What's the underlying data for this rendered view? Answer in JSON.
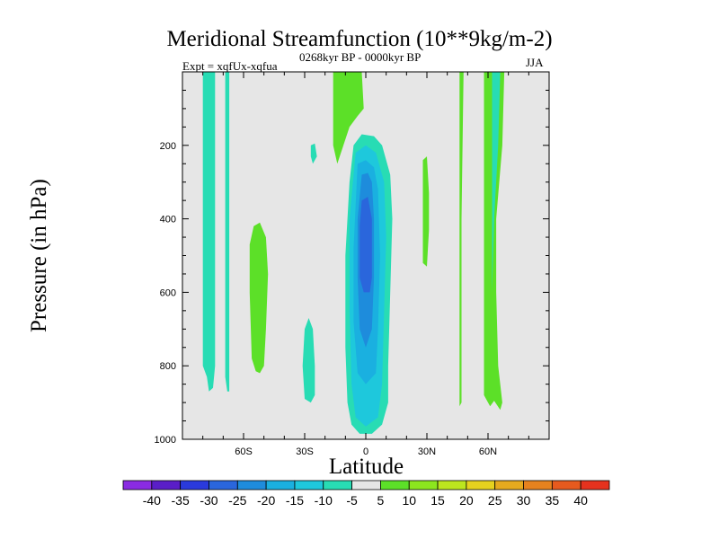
{
  "chart_data": {
    "type": "heatmap",
    "title": "Meridional Streamfunction (10**9kg/m-2)",
    "subtitle_left": "Expt = xqfUx-xqfua",
    "subtitle_center": "0268kyr BP - 0000kyr BP",
    "subtitle_right": "JJA",
    "xlabel": "Latitude",
    "ylabel": "Pressure (in hPa)",
    "xlim": [
      -90,
      90
    ],
    "ylim": [
      1000,
      0
    ],
    "x_ticks": [
      {
        "value": -60,
        "label": "60S"
      },
      {
        "value": -30,
        "label": "30S"
      },
      {
        "value": 0,
        "label": "0"
      },
      {
        "value": 30,
        "label": "30N"
      },
      {
        "value": 60,
        "label": "60N"
      }
    ],
    "y_ticks": [
      {
        "value": 200,
        "label": "200"
      },
      {
        "value": 400,
        "label": "400"
      },
      {
        "value": 600,
        "label": "600"
      },
      {
        "value": 800,
        "label": "800"
      },
      {
        "value": 1000,
        "label": "1000"
      }
    ],
    "background_color": "#e6e6e6",
    "contour_levels": [
      -40,
      -35,
      -30,
      -25,
      -20,
      -15,
      -10,
      -5,
      5,
      10,
      15,
      20,
      25,
      30,
      35,
      40
    ],
    "colorbar_colors": [
      "#8a2be2",
      "#5a1ec8",
      "#2a3adc",
      "#2a66dc",
      "#1e8cdc",
      "#1ab0e0",
      "#1ec8dc",
      "#28dcb4",
      "#e6e6e6",
      "#5ce028",
      "#8ce61e",
      "#bce61e",
      "#e6d21e",
      "#e6aa1e",
      "#e6821e",
      "#e65a1e",
      "#e6321e"
    ],
    "regions": [
      {
        "name": "sh-polar-strip-a",
        "color": "#28dcb4",
        "points": [
          [
            -80,
            0
          ],
          [
            -74,
            0
          ],
          [
            -74,
            800
          ],
          [
            -75,
            860
          ],
          [
            -77,
            870
          ],
          [
            -78,
            830
          ],
          [
            -80,
            800
          ]
        ]
      },
      {
        "name": "sh-polar-strip-b",
        "color": "#28dcb4",
        "points": [
          [
            -69,
            0
          ],
          [
            -67,
            0
          ],
          [
            -67,
            870
          ],
          [
            -68,
            870
          ],
          [
            -69,
            830
          ]
        ]
      },
      {
        "name": "sh-mid-green",
        "color": "#5ce028",
        "points": [
          [
            -55,
            420
          ],
          [
            -52,
            410
          ],
          [
            -49,
            450
          ],
          [
            -48,
            550
          ],
          [
            -49,
            700
          ],
          [
            -50,
            800
          ],
          [
            -52,
            820
          ],
          [
            -54,
            815
          ],
          [
            -56,
            780
          ],
          [
            -57,
            600
          ],
          [
            -57,
            470
          ]
        ]
      },
      {
        "name": "sh-small-teal",
        "color": "#28dcb4",
        "points": [
          [
            -27,
            200
          ],
          [
            -25,
            195
          ],
          [
            -24,
            230
          ],
          [
            -26,
            250
          ],
          [
            -27,
            230
          ]
        ]
      },
      {
        "name": "sh-lower-teal",
        "color": "#28dcb4",
        "points": [
          [
            -30,
            700
          ],
          [
            -28,
            670
          ],
          [
            -26,
            700
          ],
          [
            -25,
            800
          ],
          [
            -25,
            880
          ],
          [
            -27,
            900
          ],
          [
            -30,
            890
          ],
          [
            -31,
            800
          ]
        ]
      },
      {
        "name": "trop-top-green",
        "color": "#5ce028",
        "points": [
          [
            -16,
            0
          ],
          [
            -2,
            0
          ],
          [
            -1,
            100
          ],
          [
            -4,
            120
          ],
          [
            -8,
            150
          ],
          [
            -11,
            200
          ],
          [
            -14,
            250
          ],
          [
            -16,
            200
          ]
        ]
      },
      {
        "name": "nh-strip-green-a",
        "color": "#5ce028",
        "points": [
          [
            28,
            240
          ],
          [
            30,
            230
          ],
          [
            31,
            330
          ],
          [
            31,
            430
          ],
          [
            30,
            530
          ],
          [
            28,
            520
          ],
          [
            28,
            400
          ]
        ]
      },
      {
        "name": "nh-strip-green-b",
        "color": "#5ce028",
        "points": [
          [
            46,
            0
          ],
          [
            48,
            0
          ],
          [
            47,
            400
          ],
          [
            47,
            700
          ],
          [
            47,
            900
          ],
          [
            46,
            910
          ],
          [
            46,
            600
          ]
        ]
      },
      {
        "name": "nh-strip-green-c",
        "color": "#5ce028",
        "points": [
          [
            58,
            0
          ],
          [
            68,
            0
          ],
          [
            67,
            200
          ],
          [
            64,
            400
          ],
          [
            64,
            600
          ],
          [
            65,
            800
          ],
          [
            67,
            900
          ],
          [
            66,
            920
          ],
          [
            63,
            895
          ],
          [
            61,
            910
          ],
          [
            58,
            880
          ],
          [
            58,
            400
          ]
        ]
      },
      {
        "name": "nh-strip-teal",
        "color": "#28dcb4",
        "points": [
          [
            62,
            0
          ],
          [
            66,
            0
          ],
          [
            65,
            200
          ],
          [
            63,
            400
          ],
          [
            62,
            600
          ],
          [
            62,
            200
          ]
        ]
      },
      {
        "name": "core-level-5",
        "color": "#28dcb4",
        "points": [
          [
            -6,
            200
          ],
          [
            -2,
            170
          ],
          [
            4,
            175
          ],
          [
            8,
            200
          ],
          [
            12,
            280
          ],
          [
            13,
            400
          ],
          [
            12,
            600
          ],
          [
            11,
            800
          ],
          [
            11,
            900
          ],
          [
            8,
            960
          ],
          [
            3,
            985
          ],
          [
            -3,
            985
          ],
          [
            -7,
            960
          ],
          [
            -9,
            900
          ],
          [
            -10,
            750
          ],
          [
            -10,
            500
          ],
          [
            -8,
            300
          ]
        ]
      },
      {
        "name": "core-level-10",
        "color": "#1ec8dc",
        "points": [
          [
            -5,
            220
          ],
          [
            0,
            200
          ],
          [
            5,
            220
          ],
          [
            9,
            300
          ],
          [
            10,
            450
          ],
          [
            9,
            650
          ],
          [
            8,
            850
          ],
          [
            6,
            940
          ],
          [
            0,
            965
          ],
          [
            -5,
            940
          ],
          [
            -7,
            850
          ],
          [
            -8,
            650
          ],
          [
            -8,
            400
          ]
        ]
      },
      {
        "name": "core-level-15",
        "color": "#1ab0e0",
        "points": [
          [
            -4,
            250
          ],
          [
            0,
            240
          ],
          [
            4,
            260
          ],
          [
            6,
            320
          ],
          [
            7,
            500
          ],
          [
            6,
            700
          ],
          [
            5,
            820
          ],
          [
            0,
            850
          ],
          [
            -4,
            820
          ],
          [
            -6,
            680
          ],
          [
            -6,
            480
          ]
        ]
      },
      {
        "name": "core-level-20",
        "color": "#1e8cdc",
        "points": [
          [
            -2,
            280
          ],
          [
            1,
            275
          ],
          [
            3,
            300
          ],
          [
            4,
            400
          ],
          [
            4,
            560
          ],
          [
            3,
            700
          ],
          [
            0,
            750
          ],
          [
            -3,
            700
          ],
          [
            -4,
            560
          ],
          [
            -4,
            400
          ]
        ]
      },
      {
        "name": "core-level-25",
        "color": "#2a66dc",
        "points": [
          [
            -2,
            350
          ],
          [
            1,
            340
          ],
          [
            3,
            400
          ],
          [
            3,
            560
          ],
          [
            2,
            600
          ],
          [
            -1,
            600
          ],
          [
            -3,
            560
          ],
          [
            -3,
            420
          ]
        ]
      }
    ]
  }
}
